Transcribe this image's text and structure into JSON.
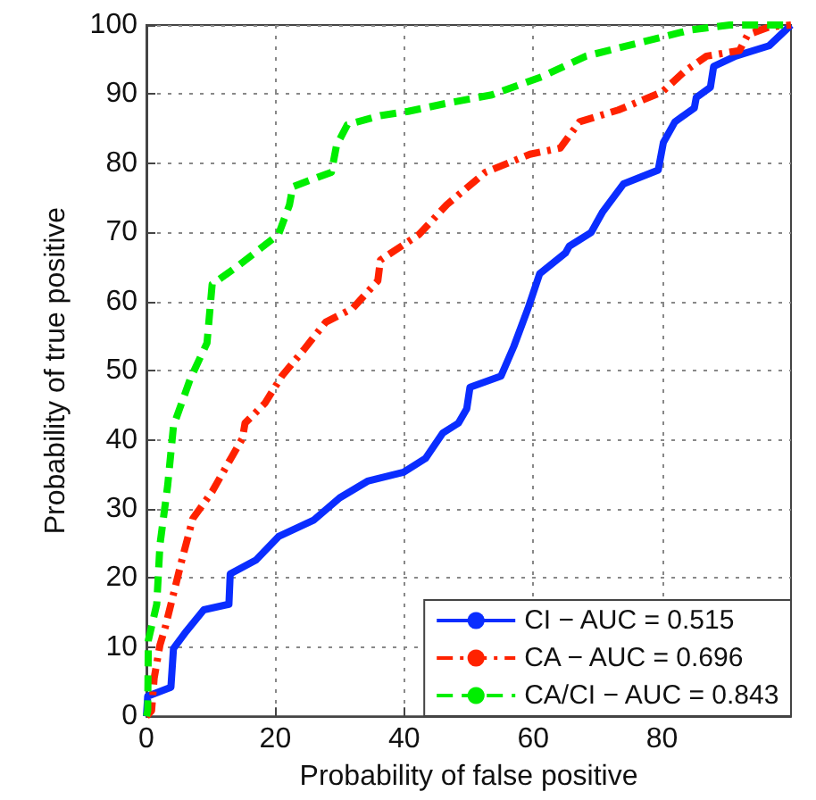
{
  "chart_data": {
    "type": "line",
    "xlabel": "Probability of false positive",
    "ylabel": "Probability of true positive",
    "xlim": [
      0,
      100
    ],
    "xticks": [
      0,
      20,
      40,
      60,
      80
    ],
    "ylim": [
      0,
      100
    ],
    "yticks": [
      0,
      10,
      20,
      30,
      40,
      50,
      60,
      70,
      80,
      90,
      100
    ],
    "grid": true,
    "legend": "bottom right",
    "marker": "none",
    "series": [
      {
        "name": "CI − AUC = 0.515",
        "color": "#0a2dff",
        "line_style": "solid",
        "x": [
          0,
          0.2,
          3.8,
          4.2,
          6.2,
          8.9,
          12.8,
          13,
          17,
          20.5,
          26,
          30,
          34.3,
          39.9,
          43.3,
          46,
          48.4,
          49.7,
          50.2,
          55,
          57,
          59.2,
          61,
          65,
          65.6,
          69,
          70.8,
          74,
          79.4,
          80.2,
          82,
          85,
          85.3,
          87.5,
          88,
          91.4,
          96.6,
          100
        ],
        "values": [
          0,
          2.9,
          4.2,
          9.8,
          12.3,
          15.4,
          16.2,
          20.6,
          22.6,
          26,
          28.4,
          31.6,
          34,
          35.3,
          37.3,
          41,
          42.4,
          44.5,
          47.6,
          49.2,
          53.5,
          59,
          64,
          67,
          68,
          70,
          73,
          77,
          79,
          83,
          86,
          88,
          89.5,
          91,
          94,
          95.5,
          97,
          100
        ]
      },
      {
        "name": "CA − AUC = 0.696",
        "color": "#ff2200",
        "line_style": "dashdot",
        "x": [
          0,
          0.8,
          1.2,
          2.1,
          2.9,
          5.5,
          7.2,
          10.2,
          12.8,
          14.9,
          15.3,
          18.4,
          21,
          24.4,
          27.8,
          32,
          35.9,
          36.3,
          42.3,
          46.6,
          52.6,
          59.5,
          64.2,
          67.2,
          73.2,
          80,
          83.5,
          86.9,
          92,
          93.3,
          96.6,
          100
        ],
        "values": [
          0,
          0.8,
          5.5,
          10.3,
          12.8,
          22.6,
          28.6,
          32.5,
          36.8,
          40.2,
          42.4,
          45.3,
          49.2,
          53,
          57,
          59,
          63,
          66,
          69.7,
          74,
          78.7,
          81.3,
          82.2,
          86,
          87.7,
          90.3,
          93.3,
          95.5,
          96.3,
          98.6,
          99.7,
          100
        ]
      },
      {
        "name": "CA/CI − AUC = 0.843",
        "color": "#00ee00",
        "line_style": "dashed",
        "x": [
          0,
          0.2,
          0.3,
          1.6,
          2.1,
          3.3,
          4.2,
          6.8,
          9.4,
          10.2,
          14,
          20.5,
          22.2,
          22.7,
          28.7,
          29.5,
          31.2,
          36.3,
          40.6,
          46.2,
          53.6,
          61.3,
          68.2,
          79.4,
          84.5,
          90.5,
          100
        ],
        "values": [
          0,
          0.8,
          11,
          16.2,
          24.8,
          33.4,
          42,
          48.8,
          54,
          62.5,
          65,
          69.7,
          74,
          76.6,
          78.7,
          82.6,
          85.6,
          86.9,
          87.5,
          88.6,
          89.9,
          92.5,
          95.5,
          98.1,
          99.3,
          100,
          100
        ]
      }
    ]
  }
}
